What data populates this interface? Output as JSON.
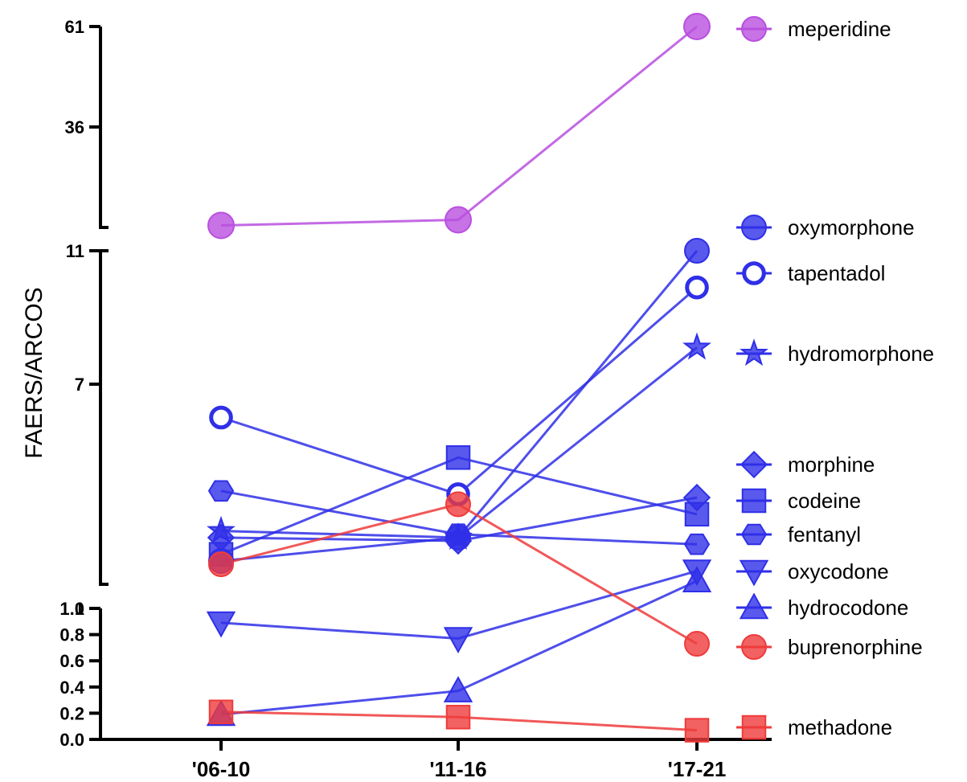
{
  "chart_data": {
    "type": "line",
    "title": "",
    "xlabel": "",
    "ylabel": "FAERS/ARCOS",
    "categories": [
      "'06-10",
      "'11-16",
      "'17-21"
    ],
    "y_axis": {
      "broken": true,
      "segments": [
        {
          "range": [
            0,
            1
          ],
          "ticks": [
            "0.0",
            "0.2",
            "0.4",
            "0.6",
            "0.8",
            "1.0"
          ]
        },
        {
          "range": [
            1,
            11
          ],
          "ticks": [
            "1",
            "7"
          ]
        },
        {
          "range": [
            11,
            61
          ],
          "ticks": [
            "11",
            "36",
            "61"
          ]
        }
      ]
    },
    "colors": {
      "opioid": "#2f2fe8",
      "meperidine": "#b94fdf",
      "red": "#ef3b3b"
    },
    "series": [
      {
        "name": "meperidine",
        "color": "#b94fdf",
        "marker": "circle",
        "values": [
          11.5,
          12.9,
          61
        ]
      },
      {
        "name": "oxymorphone",
        "color": "#2f2fe8",
        "marker": "circle",
        "values": [
          1.7,
          2.4,
          11
        ]
      },
      {
        "name": "tapentadol",
        "color": "#2f2fe8",
        "marker": "circle-open",
        "values": [
          6.0,
          3.7,
          9.9
        ]
      },
      {
        "name": "hydromorphone",
        "color": "#2f2fe8",
        "marker": "star",
        "values": [
          2.6,
          2.4,
          8.1
        ]
      },
      {
        "name": "morphine",
        "color": "#2f2fe8",
        "marker": "diamond",
        "values": [
          2.4,
          2.3,
          3.6
        ]
      },
      {
        "name": "codeine",
        "color": "#2f2fe8",
        "marker": "square",
        "values": [
          1.9,
          4.8,
          3.1
        ]
      },
      {
        "name": "fentanyl",
        "color": "#2f2fe8",
        "marker": "hexagon",
        "values": [
          3.8,
          2.5,
          2.2
        ]
      },
      {
        "name": "oxycodone",
        "color": "#2f2fe8",
        "marker": "triangle-down",
        "values": [
          0.89,
          0.77,
          1.4
        ]
      },
      {
        "name": "hydrocodone",
        "color": "#2f2fe8",
        "marker": "triangle-up",
        "values": [
          0.19,
          0.37,
          1.1
        ]
      },
      {
        "name": "buprenorphine",
        "color": "#ef3b3b",
        "marker": "circle",
        "values": [
          1.6,
          3.4,
          0.73
        ]
      },
      {
        "name": "methadone",
        "color": "#ef3b3b",
        "marker": "square",
        "values": [
          0.21,
          0.17,
          0.07
        ]
      }
    ],
    "legend": [
      {
        "name": "meperidine",
        "marker": "circle",
        "color": "#b94fdf"
      },
      {
        "name": "oxymorphone",
        "marker": "circle",
        "color": "#2f2fe8"
      },
      {
        "name": "tapentadol",
        "marker": "circle-open",
        "color": "#2f2fe8"
      },
      {
        "name": "hydromorphone",
        "marker": "star",
        "color": "#2f2fe8"
      },
      {
        "name": "morphine",
        "marker": "diamond",
        "color": "#2f2fe8"
      },
      {
        "name": "codeine",
        "marker": "square",
        "color": "#2f2fe8"
      },
      {
        "name": "fentanyl",
        "marker": "hexagon",
        "color": "#2f2fe8"
      },
      {
        "name": "oxycodone",
        "marker": "triangle-down",
        "color": "#2f2fe8"
      },
      {
        "name": "hydrocodone",
        "marker": "triangle-up",
        "color": "#2f2fe8"
      },
      {
        "name": "buprenorphine",
        "marker": "circle",
        "color": "#ef3b3b"
      },
      {
        "name": "methadone",
        "marker": "square",
        "color": "#ef3b3b"
      }
    ],
    "legend_placement": "right",
    "grid": false
  }
}
